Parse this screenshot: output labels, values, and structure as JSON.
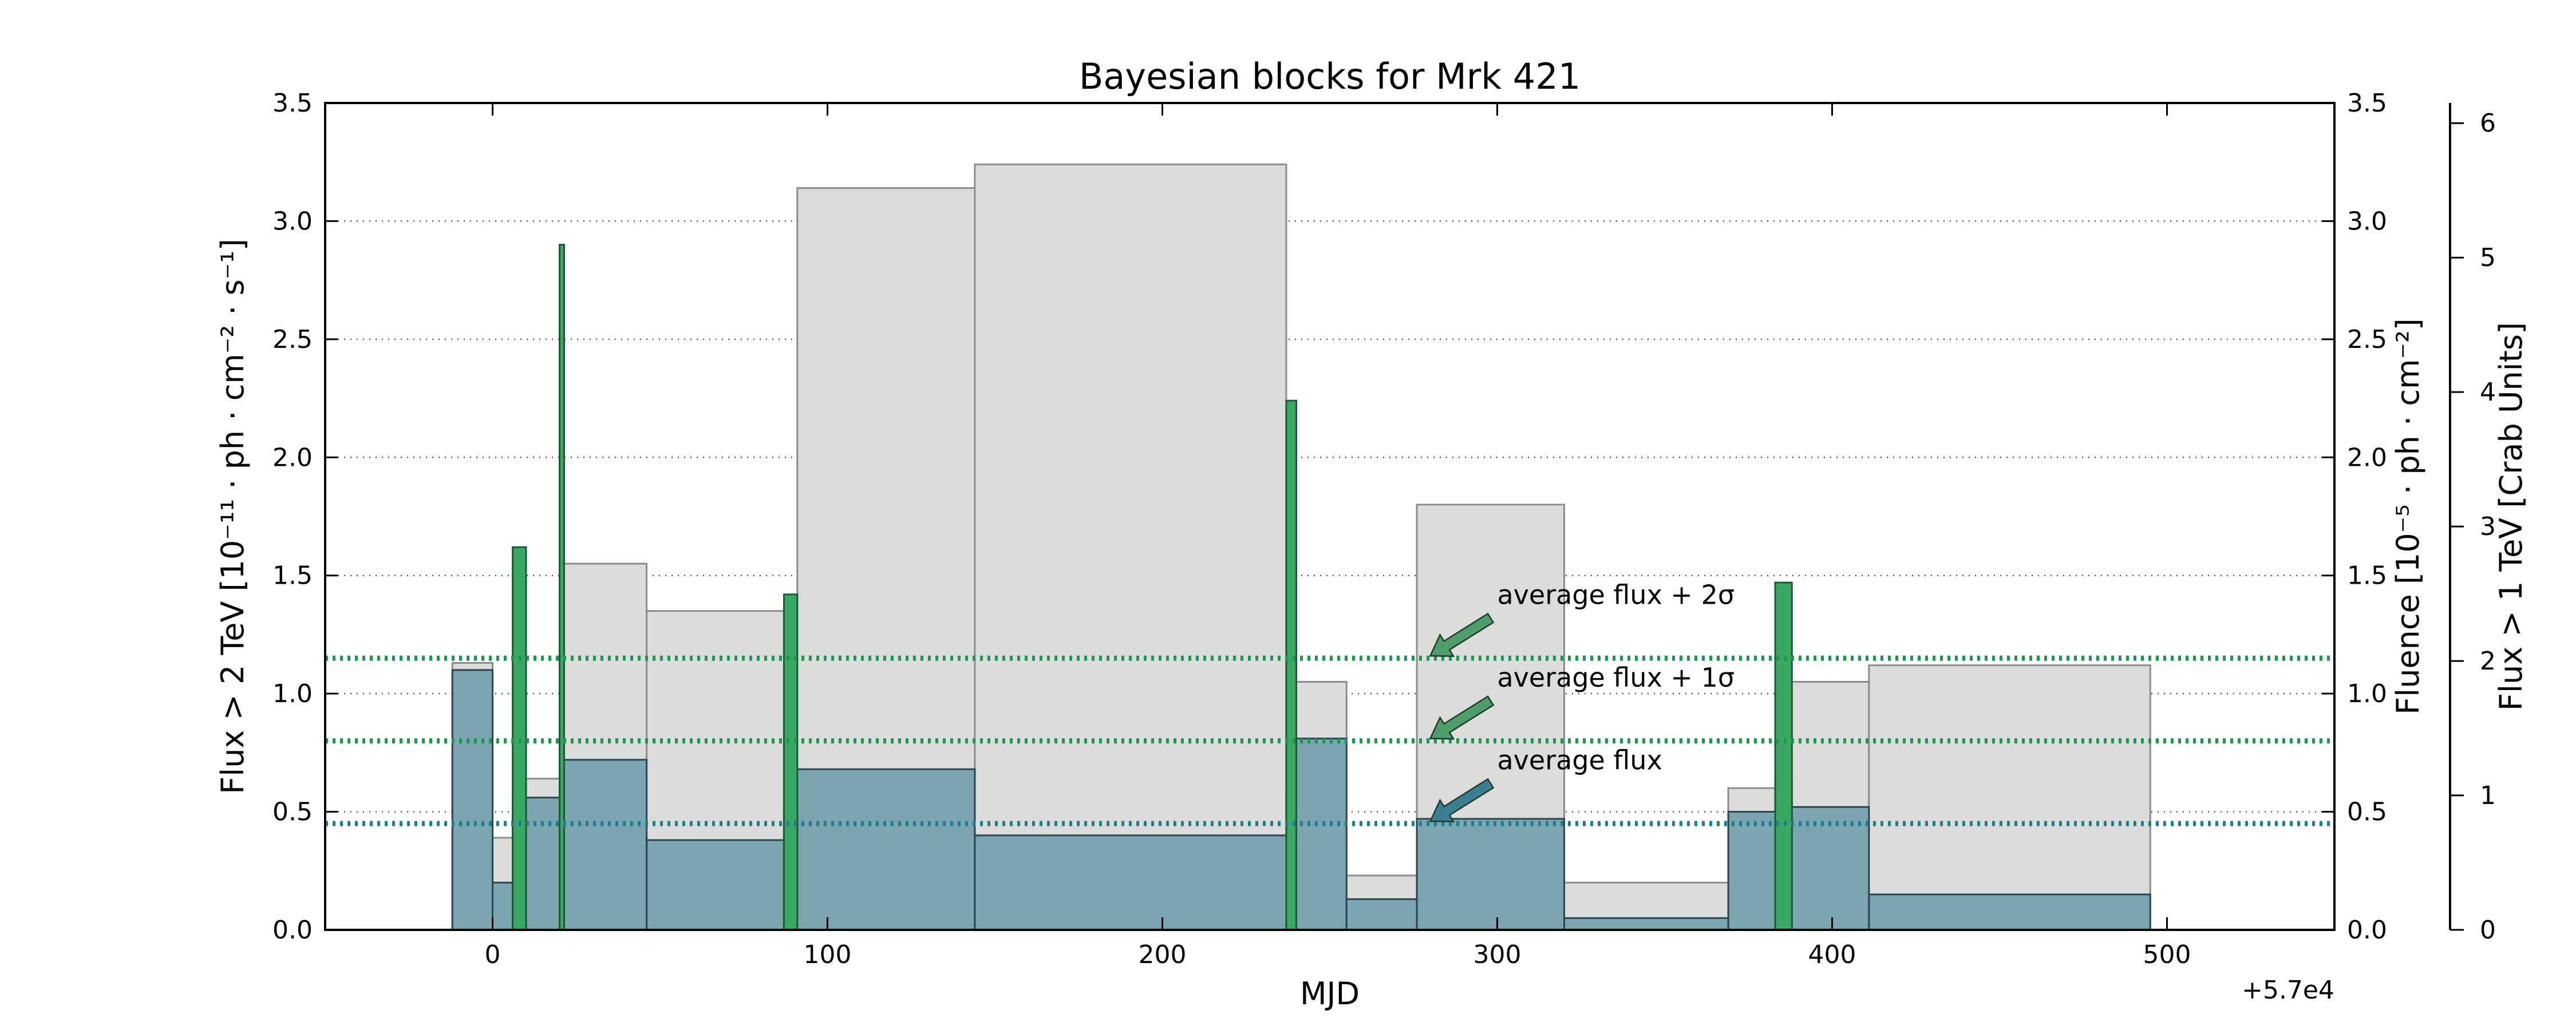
{
  "chart_data": {
    "type": "bar",
    "title": "Bayesian blocks for Mrk 421",
    "xlabel": "MJD",
    "x_offset_label": "+5.7e4",
    "ylabel_left": "Flux > 2 TeV [10⁻¹¹ · ph · cm⁻² · s⁻¹]",
    "ylabel_fluence": "Fluence [10⁻⁵ · ph · cm⁻²]",
    "ylabel_crab": "Flux > 1 TeV [Crab Units]",
    "xlim": [
      -50,
      550
    ],
    "ylim": [
      0,
      3.5
    ],
    "ylim_crab": [
      0,
      6.15
    ],
    "grid": "horizontal-dotted",
    "x_ticks": [
      0,
      100,
      200,
      300,
      400,
      500
    ],
    "x_tick_labels": [
      "0",
      "100",
      "200",
      "300",
      "400",
      "500"
    ],
    "y_ticks": [
      0.0,
      0.5,
      1.0,
      1.5,
      2.0,
      2.5,
      3.0,
      3.5
    ],
    "y_tick_labels": [
      "0.0",
      "0.5",
      "1.0",
      "1.5",
      "2.0",
      "2.5",
      "3.0",
      "3.5"
    ],
    "crab_ticks": [
      0,
      1,
      2,
      3,
      4,
      5,
      6
    ],
    "crab_tick_labels": [
      "0",
      "1",
      "2",
      "3",
      "4",
      "5",
      "6"
    ],
    "fluence_blocks": [
      {
        "x0": -12,
        "x1": 0,
        "value": 1.13
      },
      {
        "x0": 0,
        "x1": 10,
        "value": 0.39
      },
      {
        "x0": 10,
        "x1": 20,
        "value": 0.64
      },
      {
        "x0": 20,
        "x1": 46,
        "value": 1.55
      },
      {
        "x0": 46,
        "x1": 87,
        "value": 1.35
      },
      {
        "x0": 87,
        "x1": 91,
        "value": 0.65
      },
      {
        "x0": 91,
        "x1": 144,
        "value": 3.14
      },
      {
        "x0": 144,
        "x1": 237,
        "value": 3.24
      },
      {
        "x0": 237,
        "x1": 240,
        "value": 0.6
      },
      {
        "x0": 240,
        "x1": 255,
        "value": 1.05
      },
      {
        "x0": 255,
        "x1": 276,
        "value": 0.23
      },
      {
        "x0": 276,
        "x1": 320,
        "value": 1.8
      },
      {
        "x0": 320,
        "x1": 369,
        "value": 0.2
      },
      {
        "x0": 369,
        "x1": 383,
        "value": 0.6
      },
      {
        "x0": 383,
        "x1": 388,
        "value": 0.65
      },
      {
        "x0": 388,
        "x1": 411,
        "value": 1.05
      },
      {
        "x0": 411,
        "x1": 495,
        "value": 1.12
      }
    ],
    "flux_blocks": [
      {
        "x0": -12,
        "x1": 0,
        "value": 1.1
      },
      {
        "x0": 0,
        "x1": 6,
        "value": 0.2
      },
      {
        "x0": 6,
        "x1": 20,
        "value": 0.56
      },
      {
        "x0": 20,
        "x1": 21,
        "value": 2.9
      },
      {
        "x0": 21,
        "x1": 46,
        "value": 0.72
      },
      {
        "x0": 46,
        "x1": 87,
        "value": 0.38
      },
      {
        "x0": 87,
        "x1": 91,
        "value": 0.5
      },
      {
        "x0": 91,
        "x1": 144,
        "value": 0.68
      },
      {
        "x0": 144,
        "x1": 237,
        "value": 0.4
      },
      {
        "x0": 237,
        "x1": 240,
        "value": 0.58
      },
      {
        "x0": 240,
        "x1": 255,
        "value": 0.81
      },
      {
        "x0": 255,
        "x1": 276,
        "value": 0.13
      },
      {
        "x0": 276,
        "x1": 320,
        "value": 0.47
      },
      {
        "x0": 320,
        "x1": 369,
        "value": 0.05
      },
      {
        "x0": 369,
        "x1": 383,
        "value": 0.5
      },
      {
        "x0": 383,
        "x1": 388,
        "value": 0.63
      },
      {
        "x0": 388,
        "x1": 411,
        "value": 0.52
      },
      {
        "x0": 411,
        "x1": 495,
        "value": 0.15
      }
    ],
    "flares": [
      {
        "x0": 6,
        "x1": 10,
        "value": 1.62
      },
      {
        "x0": 20,
        "x1": 21,
        "value": 2.9
      },
      {
        "x0": 87,
        "x1": 91,
        "value": 1.42
      },
      {
        "x0": 237,
        "x1": 240,
        "value": 2.24
      },
      {
        "x0": 383,
        "x1": 388,
        "value": 1.47
      }
    ],
    "reference_lines": [
      {
        "name": "average flux",
        "value": 0.45,
        "color": "#1f7f8f"
      },
      {
        "name": "average flux + 1σ",
        "value": 0.8,
        "color": "#1a9850"
      },
      {
        "name": "average flux + 2σ",
        "value": 1.15,
        "color": "#1a9850"
      }
    ],
    "annotations": [
      {
        "text": "average flux + 2σ",
        "text_x": 300,
        "text_y": 1.38,
        "arrow_from": [
          298,
          1.32
        ],
        "arrow_to": [
          280,
          1.16
        ],
        "color": "#4d9e6a"
      },
      {
        "text": "average flux + 1σ",
        "text_x": 300,
        "text_y": 1.03,
        "arrow_from": [
          298,
          0.97
        ],
        "arrow_to": [
          280,
          0.81
        ],
        "color": "#4d9e6a"
      },
      {
        "text": "average flux",
        "text_x": 300,
        "text_y": 0.68,
        "arrow_from": [
          298,
          0.62
        ],
        "arrow_to": [
          280,
          0.46
        ],
        "color": "#3b7f94"
      }
    ],
    "colors": {
      "fluence_fill": "#dcdcdb",
      "fluence_edge": "#8c8c8c",
      "flux_fill": "#5b93a3",
      "flux_edge": "#2a4650",
      "flare_fill": "#3aa865",
      "flare_edge": "#1d5a34",
      "grid": "#555555"
    }
  }
}
